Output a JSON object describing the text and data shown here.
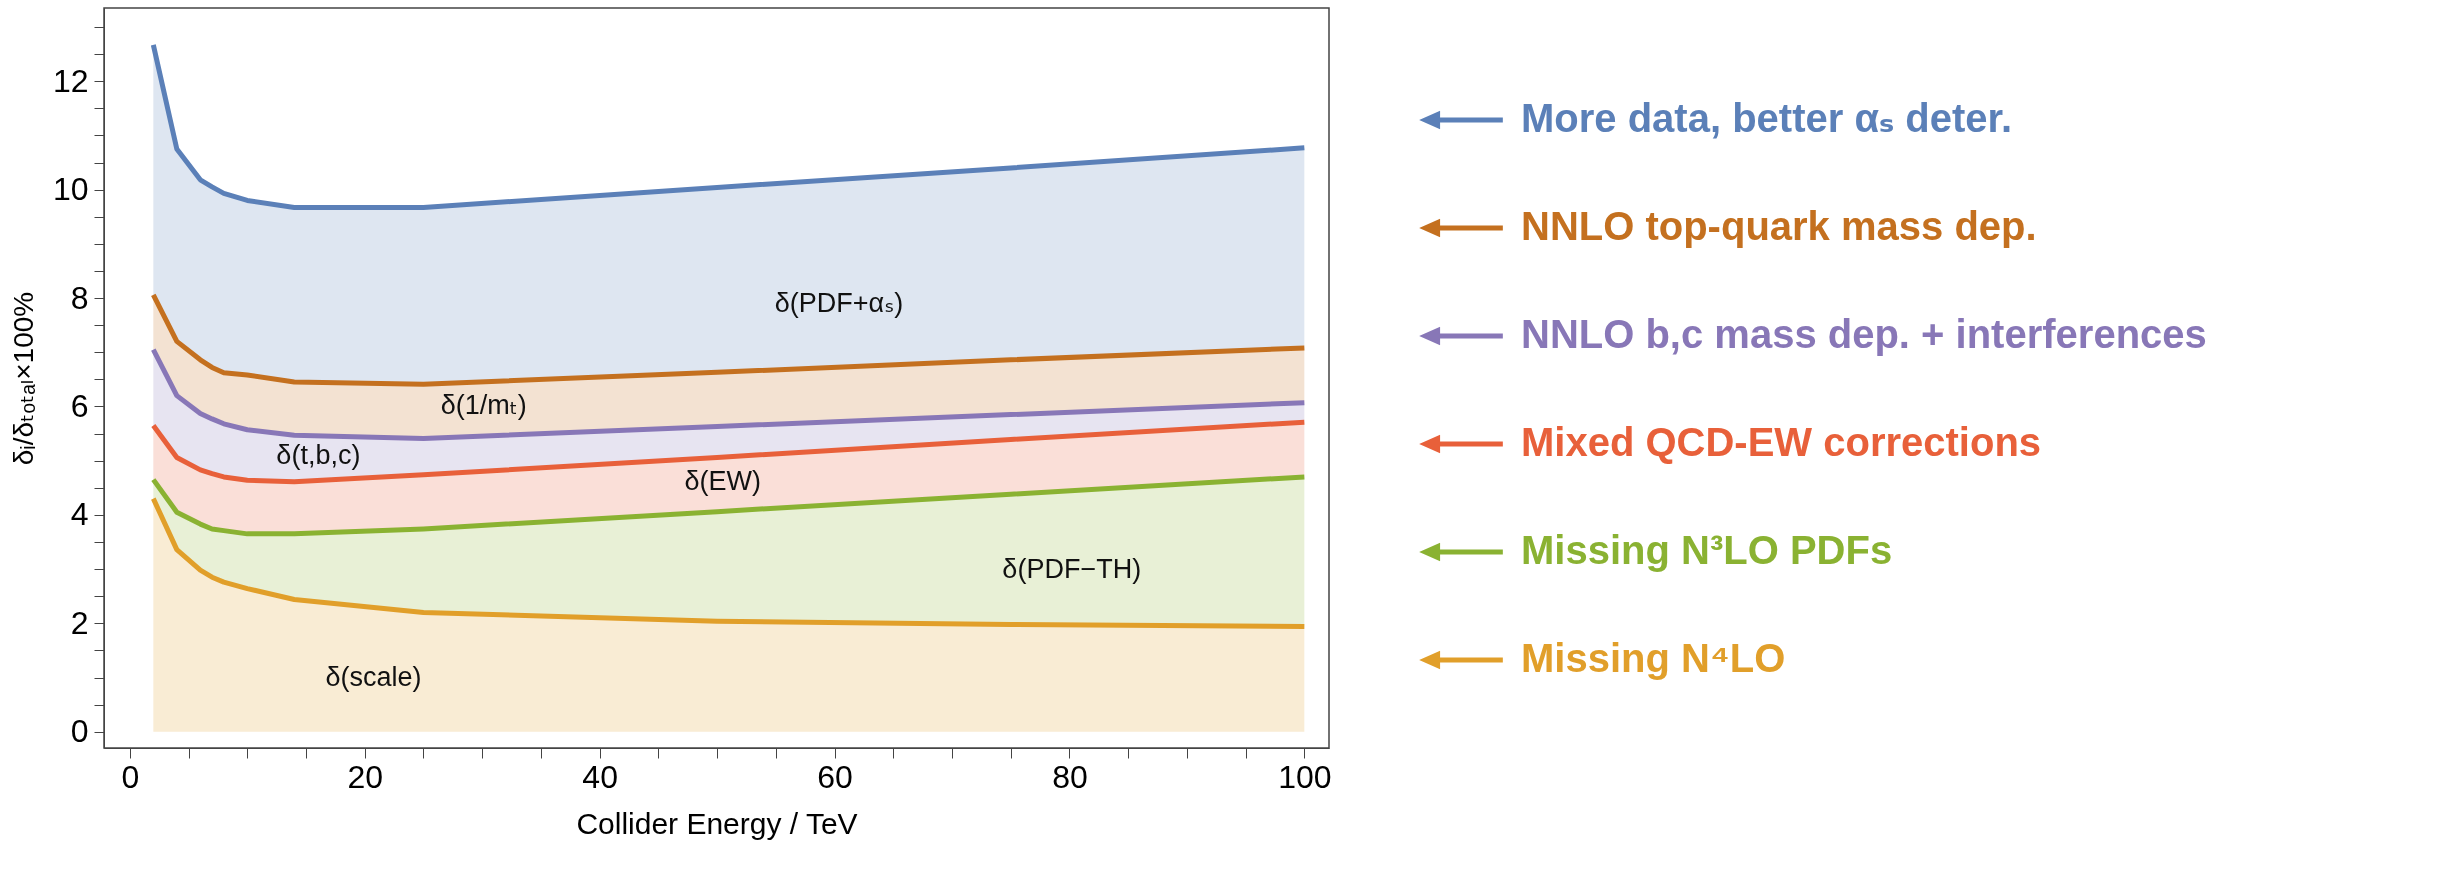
{
  "chart_data": {
    "type": "area",
    "xlabel": "Collider Energy / TeV",
    "ylabel": "δᵢ/δₜₒₜₐₗ×100%",
    "legend": "right",
    "x": [
      2,
      4,
      6,
      7,
      8,
      10,
      14,
      25,
      50,
      75,
      100
    ],
    "xlim": [
      -2.2,
      102.1
    ],
    "xticks": [
      0,
      {
        "value": 5,
        "label": null
      },
      {
        "value": 10,
        "label": null
      },
      {
        "value": 15,
        "label": null
      },
      20,
      {
        "value": 25,
        "label": null
      },
      {
        "value": 30,
        "label": null
      },
      {
        "value": 35,
        "label": null
      },
      40,
      {
        "value": 45,
        "label": null
      },
      {
        "value": 50,
        "label": null
      },
      {
        "value": 55,
        "label": null
      },
      60,
      {
        "value": 65,
        "label": null
      },
      {
        "value": 70,
        "label": null
      },
      {
        "value": 75,
        "label": null
      },
      80,
      {
        "value": 85,
        "label": null
      },
      {
        "value": 90,
        "label": null
      },
      {
        "value": 95,
        "label": null
      },
      100
    ],
    "ylim": [
      -0.3,
      13.35
    ],
    "yticks": [
      0,
      {
        "value": 0.5,
        "label": null
      },
      {
        "value": 1,
        "label": null
      },
      {
        "value": 1.5,
        "label": null
      },
      2,
      {
        "value": 2.5,
        "label": null
      },
      {
        "value": 3,
        "label": null
      },
      {
        "value": 3.5,
        "label": null
      },
      4,
      {
        "value": 4.5,
        "label": null
      },
      {
        "value": 5,
        "label": null
      },
      {
        "value": 5.5,
        "label": null
      },
      6,
      {
        "value": 6.5,
        "label": null
      },
      {
        "value": 7,
        "label": null
      },
      {
        "value": 7.5,
        "label": null
      },
      8,
      {
        "value": 8.5,
        "label": null
      },
      {
        "value": 9,
        "label": null
      },
      {
        "value": 9.5,
        "label": null
      },
      10,
      {
        "value": 10.5,
        "label": null
      },
      {
        "value": 11,
        "label": null
      },
      {
        "value": 11.5,
        "label": null
      },
      12,
      {
        "value": 12.5,
        "label": null
      },
      {
        "value": 13,
        "label": null
      }
    ],
    "series": [
      {
        "name": "More data, better αₛ deter.",
        "color": "#5b80b8",
        "values": [
          12.67,
          10.75,
          10.18,
          10.05,
          9.93,
          9.8,
          9.67,
          9.67,
          10.04,
          10.4,
          10.77
        ]
      },
      {
        "name": "NNLO top-quark mass dep.",
        "color": "#c4701f",
        "values": [
          8.06,
          7.2,
          6.86,
          6.72,
          6.62,
          6.58,
          6.45,
          6.41,
          6.63,
          6.86,
          7.08
        ]
      },
      {
        "name": "NNLO b,c mass dep. + interferences",
        "color": "#8877b7",
        "values": [
          7.05,
          6.2,
          5.87,
          5.77,
          5.68,
          5.57,
          5.47,
          5.41,
          5.63,
          5.85,
          6.07
        ]
      },
      {
        "name": "Mixed QCD-EW corrections",
        "color": "#e8603a",
        "values": [
          5.65,
          5.06,
          4.83,
          4.76,
          4.7,
          4.64,
          4.61,
          4.74,
          5.06,
          5.39,
          5.71
        ]
      },
      {
        "name": "Missing N³LO PDFs",
        "color": "#8ab232",
        "values": [
          4.65,
          4.05,
          3.83,
          3.74,
          3.71,
          3.65,
          3.65,
          3.74,
          4.06,
          4.38,
          4.7
        ]
      },
      {
        "name": "Missing N⁴LO",
        "color": "#e19f2a",
        "values": [
          4.3,
          3.36,
          2.98,
          2.85,
          2.76,
          2.64,
          2.44,
          2.2,
          2.04,
          1.98,
          1.94
        ]
      }
    ],
    "annotations": [
      "δ(PDF+αₛ)",
      "δ(1/mₜ)",
      "δ(t,b,c)",
      "δ(EW)",
      "δ(PDF−TH)",
      "δ(scale)"
    ]
  }
}
